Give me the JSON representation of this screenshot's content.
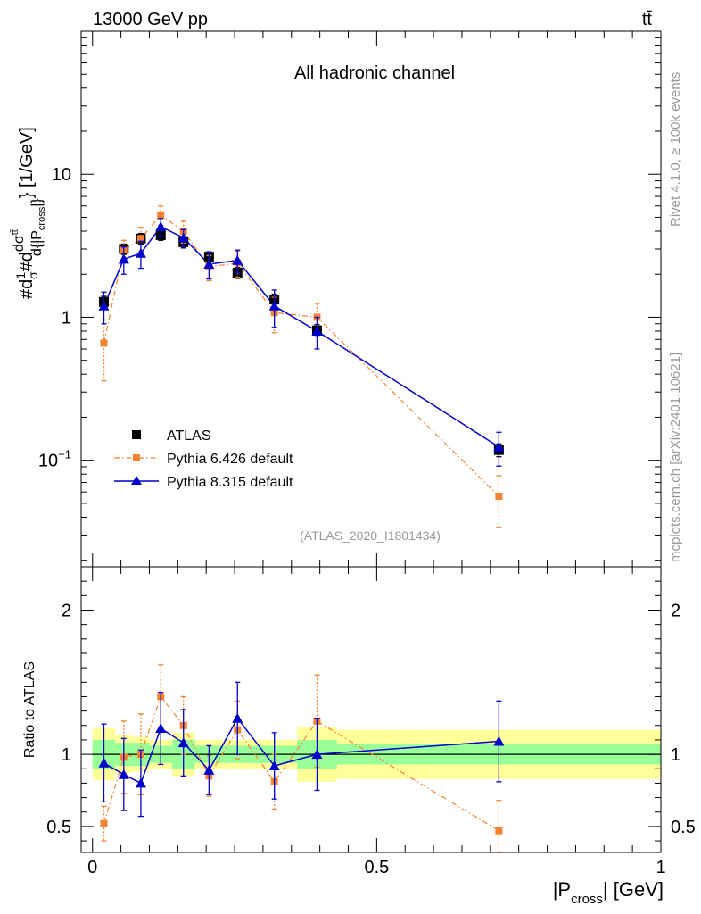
{
  "header": {
    "energy_label": "13000 GeV pp",
    "process_label": "tt̄",
    "channel_label": "All hadronic channel",
    "watermark": "(ATLAS_2020_I1801434)",
    "side_label_rivet": "Rivet 4.1.0, ≥ 100k events",
    "side_label_mcplots": "mcplots.cern.ch [arXiv:2401.10621]"
  },
  "colors": {
    "data": "#000000",
    "pythia6": "#f58231",
    "pythia8": "#0000cc",
    "band_inner": "#99ff99",
    "band_outer": "#ffff99"
  },
  "chart_data": [
    {
      "type": "line",
      "title": "All hadronic channel",
      "xlabel": "|P_cross| [GeV]",
      "ylabel": "#d1/σ#d dσ^{tt̄}/d{|P_cross|} [1/GeV]",
      "yscale": "log",
      "xlim": [
        -0.02,
        1.0
      ],
      "ylim": [
        0.018,
        100
      ],
      "ytick_labels": [
        "10^-1",
        "1",
        "10"
      ],
      "x": [
        0.02,
        0.055,
        0.085,
        0.12,
        0.16,
        0.205,
        0.255,
        0.32,
        0.395,
        0.715
      ],
      "x_edges": [
        0,
        0.04,
        0.07,
        0.1,
        0.14,
        0.18,
        0.23,
        0.28,
        0.36,
        0.43,
        1.0
      ],
      "series": [
        {
          "name": "ATLAS",
          "values": [
            1.28,
            3.0,
            3.55,
            3.75,
            3.35,
            2.65,
            2.05,
            1.33,
            0.81,
            0.118
          ],
          "errors": [
            0.12,
            0.25,
            0.3,
            0.3,
            0.3,
            0.22,
            0.18,
            0.12,
            0.08,
            0.012
          ]
        },
        {
          "name": "Pythia 6.426 default",
          "values": [
            0.66,
            2.95,
            3.55,
            5.2,
            4.0,
            2.25,
            2.4,
            1.08,
            1.0,
            0.056
          ],
          "errors": [
            0.3,
            0.5,
            0.7,
            0.8,
            0.7,
            0.45,
            0.5,
            0.3,
            0.25,
            0.022
          ]
        },
        {
          "name": "Pythia 8.315 default",
          "values": [
            1.2,
            2.55,
            2.8,
            4.3,
            3.6,
            2.35,
            2.5,
            1.2,
            0.8,
            0.124
          ],
          "errors": [
            0.3,
            0.55,
            0.6,
            0.6,
            0.5,
            0.5,
            0.45,
            0.35,
            0.2,
            0.033
          ]
        }
      ]
    },
    {
      "type": "line",
      "xlabel": "|P_cross| [GeV]",
      "ylabel": "Ratio to ATLAS",
      "xlim": [
        -0.02,
        1.0
      ],
      "ylim": [
        0.32,
        2.3
      ],
      "ytick_labels": [
        "0.5",
        "1",
        "2"
      ],
      "xtick_labels": [
        "0",
        "0.5",
        "1"
      ],
      "x": [
        0.02,
        0.055,
        0.085,
        0.12,
        0.16,
        0.205,
        0.255,
        0.32,
        0.395,
        0.715
      ],
      "band_inner_halfwidth": [
        0.1,
        0.08,
        0.08,
        0.06,
        0.1,
        0.06,
        0.06,
        0.06,
        0.1,
        0.07
      ],
      "band_outer_halfwidth": [
        0.18,
        0.13,
        0.12,
        0.1,
        0.15,
        0.1,
        0.1,
        0.1,
        0.19,
        0.17
      ],
      "series": [
        {
          "name": "Pythia 6.426 default",
          "values": [
            0.52,
            0.98,
            1.0,
            1.4,
            1.2,
            0.85,
            1.17,
            0.81,
            1.23,
            0.47
          ],
          "errors": [
            0.12,
            0.25,
            0.28,
            0.22,
            0.2,
            0.14,
            0.2,
            0.19,
            0.32,
            0.21
          ]
        },
        {
          "name": "Pythia 8.315 default",
          "values": [
            0.94,
            0.86,
            0.8,
            1.18,
            1.08,
            0.89,
            1.25,
            0.92,
            1.0,
            1.09
          ],
          "errors": [
            0.27,
            0.25,
            0.23,
            0.25,
            0.23,
            0.17,
            0.25,
            0.23,
            0.25,
            0.28
          ]
        }
      ]
    }
  ]
}
